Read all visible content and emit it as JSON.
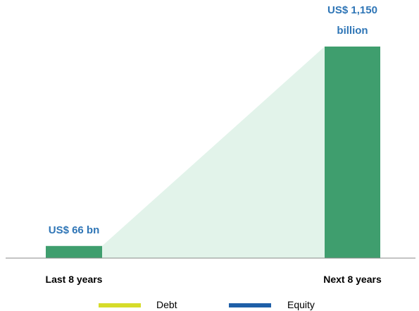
{
  "chart_data": {
    "type": "bar",
    "categories": [
      "Last 8 years",
      "Next 8 years"
    ],
    "values": [
      66,
      1150
    ],
    "value_labels": [
      "US$ 66 bn",
      "US$ 1,150 billion"
    ],
    "color": "#3f9e6e",
    "legend": [
      {
        "name": "Debt",
        "color": "#d6dc2a"
      },
      {
        "name": "Equity",
        "color": "#1f5fa8"
      }
    ]
  }
}
